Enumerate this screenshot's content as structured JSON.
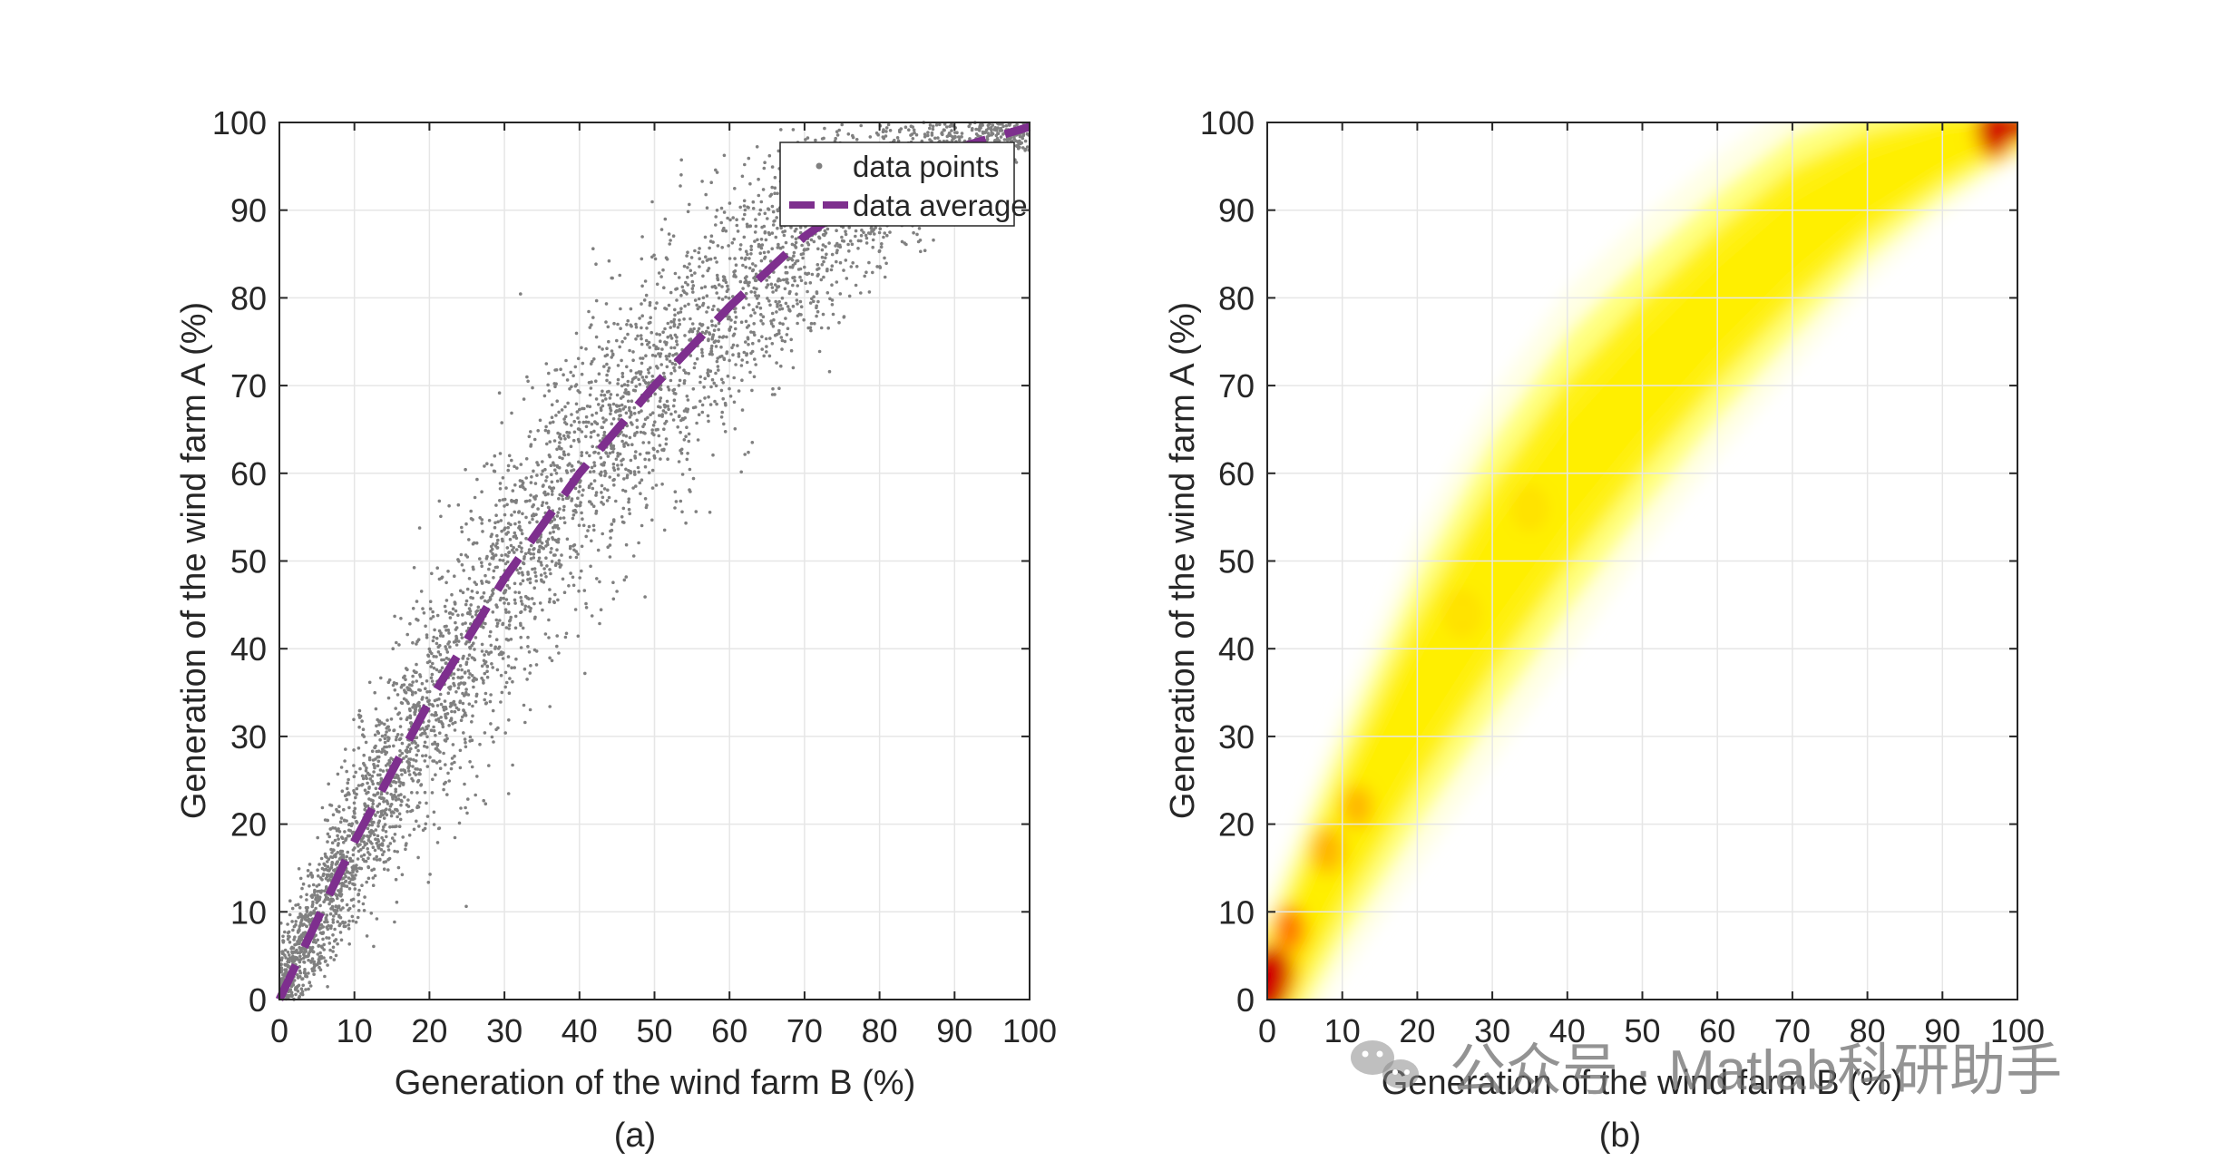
{
  "figure": {
    "watermark_text": "公众号 · Matlab科研助手",
    "watermark_icon": "wechat-icon"
  },
  "chart_data": [
    {
      "panel": "(a)",
      "type": "scatter",
      "caption": "(a)",
      "xlabel": "Generation of the wind farm B (%)",
      "ylabel": "Generation of the wind farm A (%)",
      "xlim": [
        0,
        100
      ],
      "ylim": [
        0,
        100
      ],
      "xticks": [
        0,
        10,
        20,
        30,
        40,
        50,
        60,
        70,
        80,
        90,
        100
      ],
      "yticks": [
        0,
        10,
        20,
        30,
        40,
        50,
        60,
        70,
        80,
        90,
        100
      ],
      "grid": true,
      "legend": {
        "placement": "top-right",
        "entries": [
          "data points",
          "data average"
        ]
      },
      "colors": {
        "points": "#808080",
        "average": "#7e2f8e"
      },
      "series": [
        {
          "name": "data points",
          "style": "dots",
          "point_count_estimate": 5000,
          "trend_x": [
            0,
            10,
            20,
            30,
            40,
            50,
            60,
            70,
            80,
            90,
            100
          ],
          "trend_y": [
            0,
            18,
            34,
            48,
            60,
            70,
            79,
            87,
            93,
            97,
            99.5
          ],
          "spread_y": [
            3,
            5,
            7,
            8,
            8,
            7.5,
            7,
            6,
            5,
            3,
            1
          ]
        },
        {
          "name": "data average",
          "style": "dashed",
          "x": [
            0,
            10,
            20,
            30,
            40,
            50,
            60,
            70,
            80,
            90,
            100
          ],
          "y": [
            0,
            18,
            34,
            48,
            60,
            70,
            79,
            87,
            93,
            97,
            99.5
          ]
        }
      ]
    },
    {
      "panel": "(b)",
      "type": "heatmap",
      "caption": "(b)",
      "xlabel": "Generation of the wind farm B (%)",
      "ylabel": "Generation of the wind farm A (%)",
      "xlim": [
        0,
        100
      ],
      "ylim": [
        0,
        100
      ],
      "xticks": [
        0,
        10,
        20,
        30,
        40,
        50,
        60,
        70,
        80,
        90,
        100
      ],
      "yticks": [
        0,
        10,
        20,
        30,
        40,
        50,
        60,
        70,
        80,
        90,
        100
      ],
      "grid": true,
      "colormap": [
        "#ffffe0",
        "#ffff66",
        "#ffee00",
        "#ffb000",
        "#ff6a00",
        "#d10000"
      ],
      "ridge_x": [
        0,
        10,
        20,
        30,
        40,
        50,
        60,
        70,
        80,
        90,
        100
      ],
      "ridge_y": [
        0,
        18,
        34,
        48,
        60,
        70,
        79,
        87,
        93,
        97,
        99.5
      ],
      "ridge_width_y": [
        6,
        8,
        10,
        11,
        11,
        10,
        9,
        8,
        6,
        4,
        2
      ],
      "hotspots": [
        {
          "x": 1,
          "y": 3,
          "level": 1.0
        },
        {
          "x": 3,
          "y": 8,
          "level": 0.65
        },
        {
          "x": 8,
          "y": 17,
          "level": 0.55
        },
        {
          "x": 12,
          "y": 22,
          "level": 0.45
        },
        {
          "x": 26,
          "y": 44,
          "level": 0.35
        },
        {
          "x": 35,
          "y": 56,
          "level": 0.3
        },
        {
          "x": 97,
          "y": 99,
          "level": 0.9
        }
      ]
    }
  ]
}
